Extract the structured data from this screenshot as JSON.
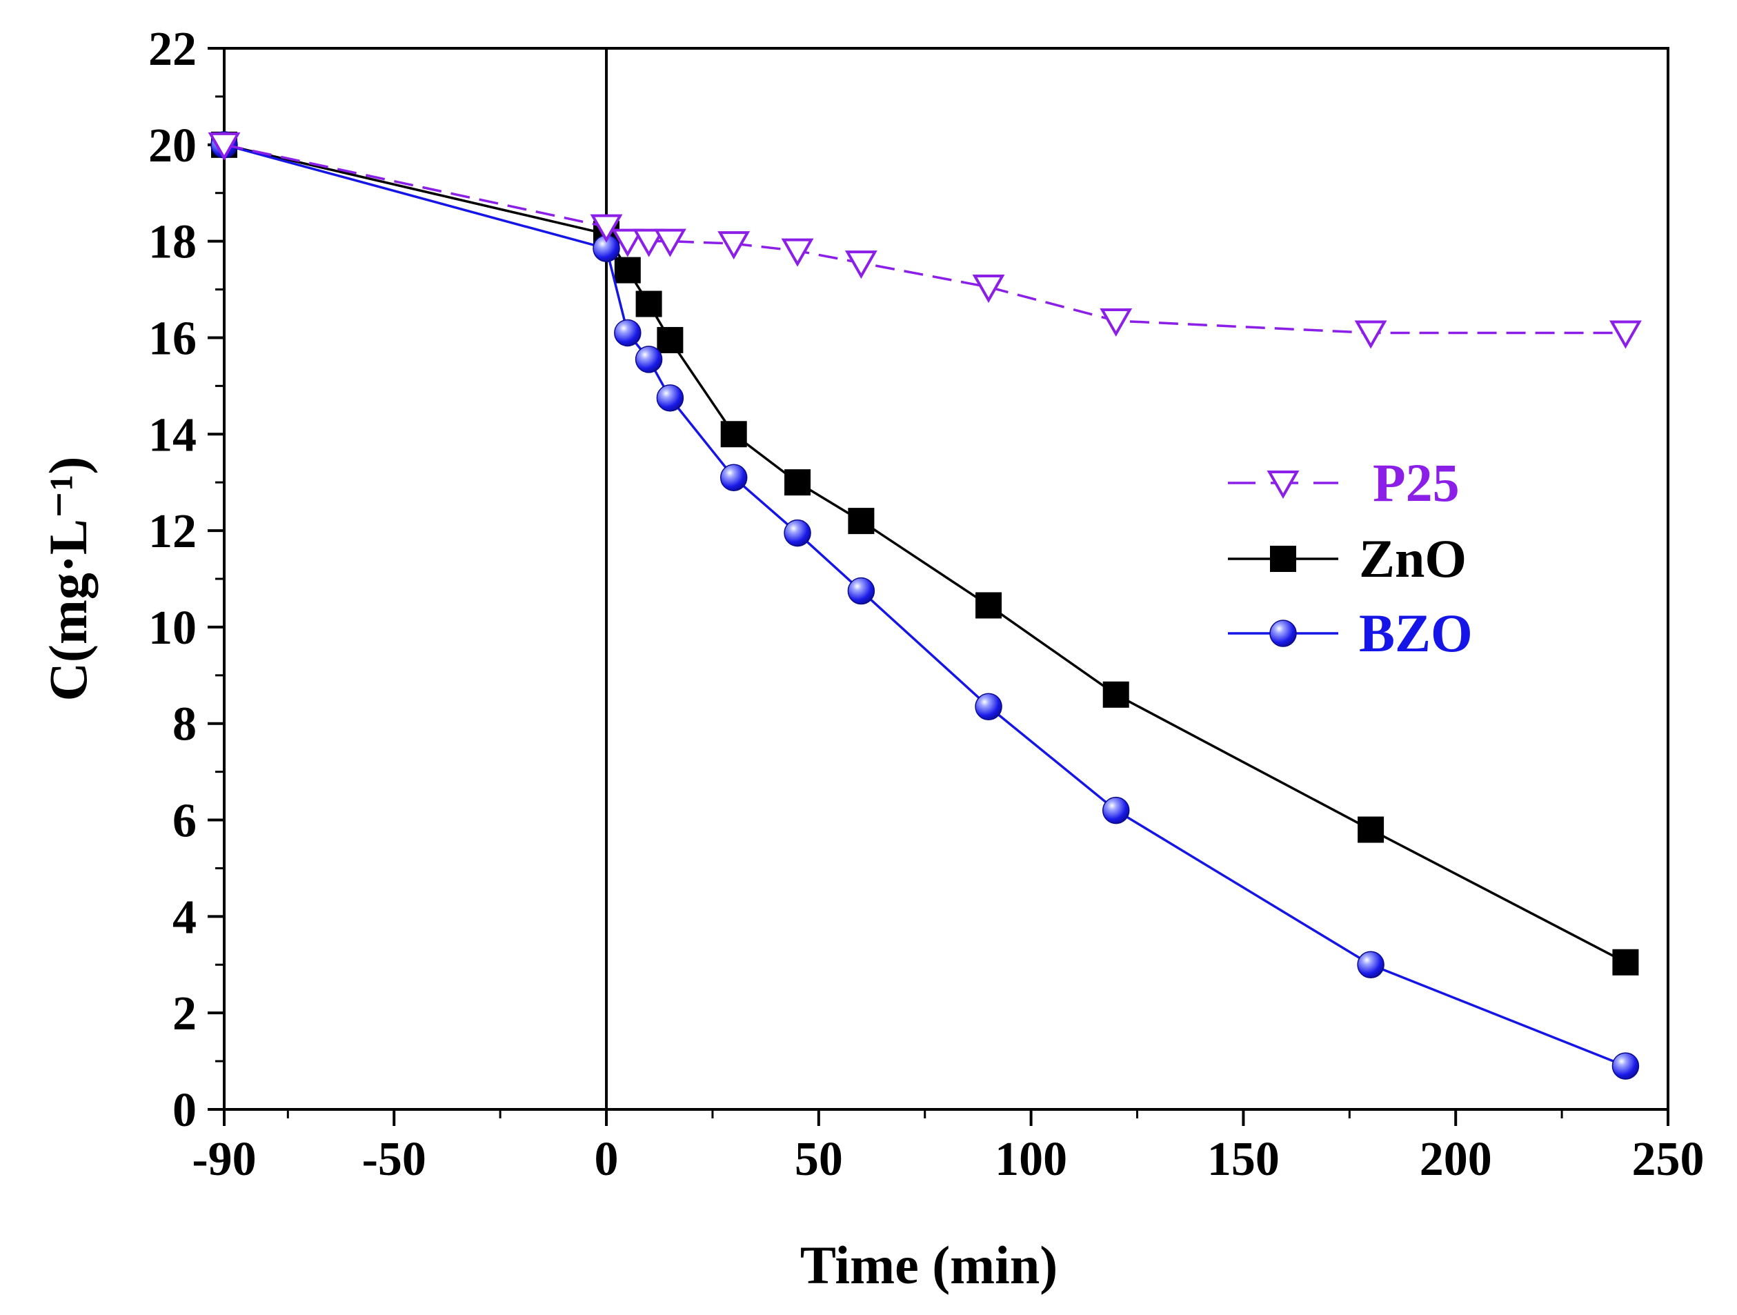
{
  "chart_data": {
    "type": "line",
    "title": "",
    "xlabel": "Time (min)",
    "ylabel": "C(mg·L⁻¹)",
    "xlim": [
      -90,
      250
    ],
    "ylim": [
      0,
      22
    ],
    "x_ticks": [
      -90,
      -50,
      0,
      50,
      100,
      150,
      200,
      250
    ],
    "x_tick_labels": [
      "-90",
      "-50",
      "0",
      "50",
      "100",
      "150",
      "200",
      "250"
    ],
    "y_ticks": [
      0,
      2,
      4,
      6,
      8,
      10,
      12,
      14,
      16,
      18,
      20,
      22
    ],
    "y_tick_labels": [
      "0",
      "2",
      "4",
      "6",
      "8",
      "10",
      "12",
      "14",
      "16",
      "18",
      "20",
      "22"
    ],
    "vertical_line_x": 0,
    "grid": false,
    "legend_position": "right-middle",
    "series": [
      {
        "name": "P25",
        "color": "#8B1FE8",
        "marker": "triangle-down-open",
        "line_style": "dashed",
        "x": [
          -90,
          0,
          5,
          10,
          15,
          30,
          45,
          60,
          90,
          120,
          180,
          240
        ],
        "values": [
          20.0,
          18.3,
          18.0,
          18.0,
          18.0,
          17.95,
          17.8,
          17.55,
          17.05,
          16.35,
          16.1,
          16.1
        ]
      },
      {
        "name": "ZnO",
        "color": "#000000",
        "marker": "square",
        "line_style": "solid",
        "x": [
          -90,
          0,
          5,
          10,
          15,
          30,
          45,
          60,
          90,
          120,
          180,
          240
        ],
        "values": [
          20.0,
          18.15,
          17.4,
          16.7,
          15.95,
          14.0,
          13.0,
          12.2,
          10.45,
          8.6,
          5.8,
          3.05
        ]
      },
      {
        "name": "BZO",
        "color": "#1515E8",
        "marker": "sphere",
        "line_style": "solid",
        "x": [
          -90,
          0,
          5,
          10,
          15,
          30,
          45,
          60,
          90,
          120,
          180,
          240
        ],
        "values": [
          20.0,
          17.85,
          16.1,
          15.55,
          14.75,
          13.1,
          11.95,
          10.75,
          8.35,
          6.2,
          3.0,
          0.9
        ]
      }
    ]
  }
}
